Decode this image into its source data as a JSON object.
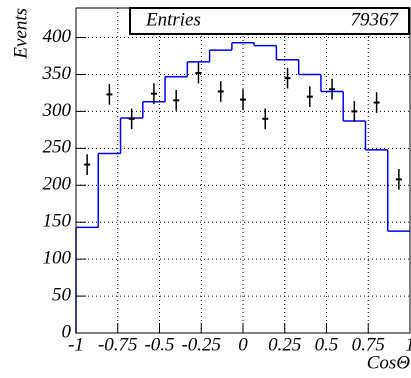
{
  "chart_data": {
    "type": "histogram",
    "xlabel": "CosΘ",
    "ylabel": "Events",
    "xlim": [
      -1,
      1
    ],
    "ylim": [
      0,
      440
    ],
    "xticks": [
      -1,
      -0.75,
      -0.5,
      -0.25,
      0,
      0.25,
      0.5,
      0.75,
      1
    ],
    "yticks": [
      0,
      50,
      100,
      150,
      200,
      250,
      300,
      350,
      400
    ],
    "grid": true,
    "color": "#0000ff",
    "bins": [
      -1,
      -0.8667,
      -0.7333,
      -0.6,
      -0.4667,
      -0.3333,
      -0.2,
      -0.0667,
      0.0667,
      0.2,
      0.3333,
      0.4667,
      0.6,
      0.7333,
      0.8667,
      1
    ],
    "counts": [
      143,
      243,
      291,
      313,
      347,
      367,
      383,
      393,
      389,
      370,
      350,
      327,
      287,
      248,
      138
    ],
    "points": {
      "color": "#000000",
      "x": [
        -0.9333,
        -0.8,
        -0.6667,
        -0.5333,
        -0.4,
        -0.2667,
        -0.1333,
        0,
        0.1333,
        0.2667,
        0.4,
        0.5333,
        0.6667,
        0.8,
        0.9333
      ],
      "values": [
        228,
        323,
        290,
        324,
        315,
        352,
        327,
        316,
        290,
        345,
        320,
        330,
        300,
        312,
        208
      ],
      "errors": [
        14,
        14,
        14,
        14,
        14,
        14,
        14,
        14,
        14,
        14,
        14,
        14,
        14,
        14,
        14
      ]
    },
    "stats": {
      "label": "Entries",
      "value": 79367
    }
  }
}
